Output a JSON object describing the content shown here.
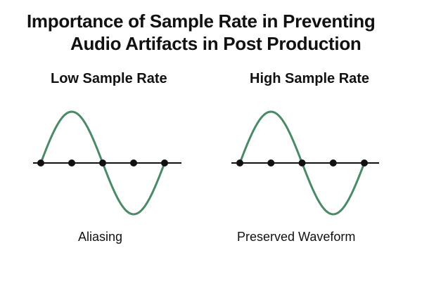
{
  "title": {
    "line1": "Importance of Sample Rate in Preventing",
    "line2": "Audio Artifacts in Post Production"
  },
  "panels": [
    {
      "heading": "Low Sample Rate",
      "caption": "Aliasing",
      "sample_points": 5
    },
    {
      "heading": "High Sample Rate",
      "caption": "Preserved Waveform",
      "sample_points": 5
    }
  ],
  "colors": {
    "waveform": "#4a8a66",
    "axis": "#111111",
    "sample_point": "#111111",
    "text": "#111111"
  }
}
